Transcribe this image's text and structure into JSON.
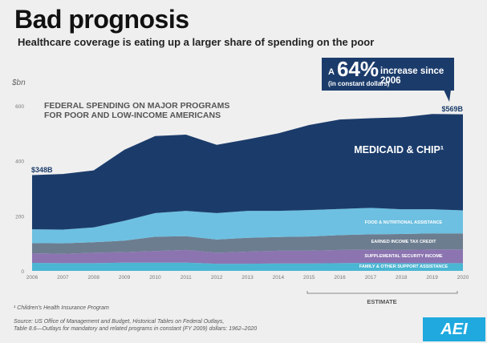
{
  "header": {
    "title": "Bad prognosis",
    "subtitle": "Healthcare coverage is eating up a larger share of spending on the poor"
  },
  "callout": {
    "prefix": "A",
    "percent": "64%",
    "text": "increase since 2006",
    "subtext": "(in constant dollars)"
  },
  "footnotes": {
    "note1": "¹ Children's Health Insurance Program",
    "source_line1": "Source: US Office of Management and Budget, Historical Tables on Federal Outlays,",
    "source_line2": "Table 8.6—Outlays for mandatory and related programs in constant (FY 2009) dollars: 1962–2020"
  },
  "logo": {
    "text": "AEI",
    "color": "#1fa9df"
  },
  "chart_data": {
    "type": "area",
    "stacked": true,
    "title": "FEDERAL SPENDING ON MAJOR PROGRAMS\nFOR POOR AND LOW-INCOME AMERICANS",
    "title_lines": [
      "FEDERAL SPENDING ON MAJOR PROGRAMS",
      "FOR POOR AND LOW-INCOME AMERICANS"
    ],
    "ylabel": "$bn",
    "xlabel": "",
    "ylim": [
      0,
      600
    ],
    "yticks": [
      0,
      200,
      400,
      600
    ],
    "grid": false,
    "x": [
      2006,
      2007,
      2008,
      2009,
      2010,
      2011,
      2012,
      2013,
      2014,
      2015,
      2016,
      2017,
      2018,
      2019,
      2020
    ],
    "series": [
      {
        "name": "FAMILY & OTHER SUPPORT ASSISTANCE",
        "color": "#4bb6d3",
        "values": [
          29,
          28,
          28,
          30,
          30,
          30,
          26,
          26,
          27,
          27,
          28,
          29,
          28,
          28,
          28
        ]
      },
      {
        "name": "SUPPLEMENTAL SECURITY INCOME",
        "color": "#8c74b1",
        "values": [
          35,
          34,
          38,
          38,
          42,
          46,
          40,
          44,
          46,
          46,
          48,
          48,
          48,
          50,
          50
        ]
      },
      {
        "name": "EARNED INCOME TAX CREDIT",
        "color": "#6c7d90",
        "values": [
          37,
          38,
          38,
          42,
          52,
          50,
          48,
          50,
          50,
          52,
          54,
          56,
          58,
          58,
          58
        ]
      },
      {
        "name": "FOOD & NUTRITIONAL ASSISTANCE",
        "color": "#6dc0e1",
        "values": [
          50,
          50,
          54,
          72,
          86,
          92,
          96,
          98,
          95,
          96,
          95,
          96,
          90,
          88,
          84
        ]
      },
      {
        "name": "MEDICAID & CHIP¹",
        "color": "#1b3c6b",
        "values": [
          197,
          202,
          207,
          258,
          280,
          277,
          248,
          260,
          282,
          309,
          325,
          326,
          334,
          346,
          349
        ]
      }
    ],
    "annotations": {
      "start_total": "$348B",
      "end_total": "$569B",
      "estimate_label": "ESTIMATE",
      "estimate_range": [
        2015,
        2020
      ]
    }
  }
}
